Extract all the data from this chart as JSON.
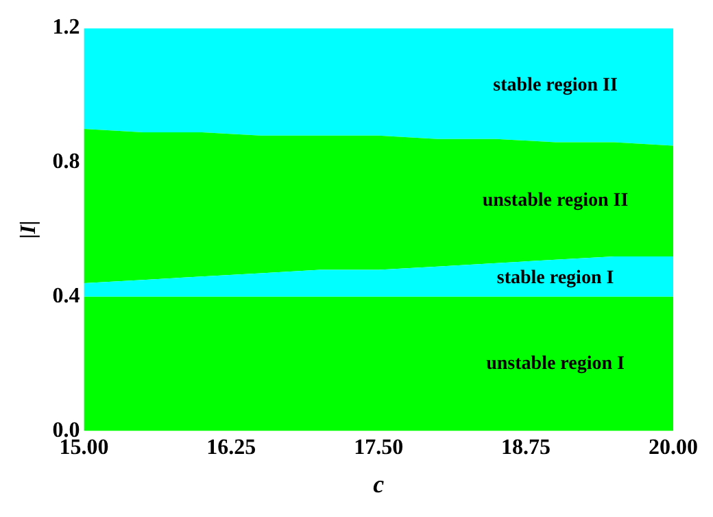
{
  "chart_data": {
    "type": "area",
    "stacked": true,
    "xlabel": "c",
    "ylabel": "|I|",
    "x": [
      15,
      15.5,
      16,
      16.5,
      17,
      17.5,
      18,
      18.5,
      19,
      19.5,
      20
    ],
    "series": [
      {
        "name": "unstable region I",
        "color": "#00ff00",
        "values": [
          0.4,
          0.4,
          0.4,
          0.4,
          0.4,
          0.4,
          0.4,
          0.4,
          0.4,
          0.4,
          0.4
        ]
      },
      {
        "name": "stable region I",
        "color": "#00ffff",
        "values": [
          0.04,
          0.05,
          0.06,
          0.07,
          0.08,
          0.08,
          0.09,
          0.1,
          0.11,
          0.12,
          0.12
        ]
      },
      {
        "name": "unstable region II",
        "color": "#00ff00",
        "values": [
          0.46,
          0.44,
          0.43,
          0.41,
          0.4,
          0.4,
          0.38,
          0.37,
          0.35,
          0.34,
          0.33
        ]
      },
      {
        "name": "stable region II",
        "color": "#00ffff",
        "values": [
          0.3,
          0.31,
          0.31,
          0.32,
          0.32,
          0.32,
          0.33,
          0.33,
          0.34,
          0.34,
          0.35
        ]
      }
    ],
    "xlim": [
      15,
      20
    ],
    "ylim": [
      0,
      1.2
    ],
    "xticks": [
      {
        "value": 15,
        "label": "15.00"
      },
      {
        "value": 16.25,
        "label": "16.25"
      },
      {
        "value": 17.5,
        "label": "17.50"
      },
      {
        "value": 18.75,
        "label": "18.75"
      },
      {
        "value": 20,
        "label": "20.00"
      }
    ],
    "yticks": [
      {
        "value": 0,
        "label": "0.0"
      },
      {
        "value": 0.4,
        "label": "0.4"
      },
      {
        "value": 0.8,
        "label": "0.8"
      },
      {
        "value": 1.2,
        "label": "1.2"
      }
    ],
    "grid": false,
    "legend": false
  }
}
